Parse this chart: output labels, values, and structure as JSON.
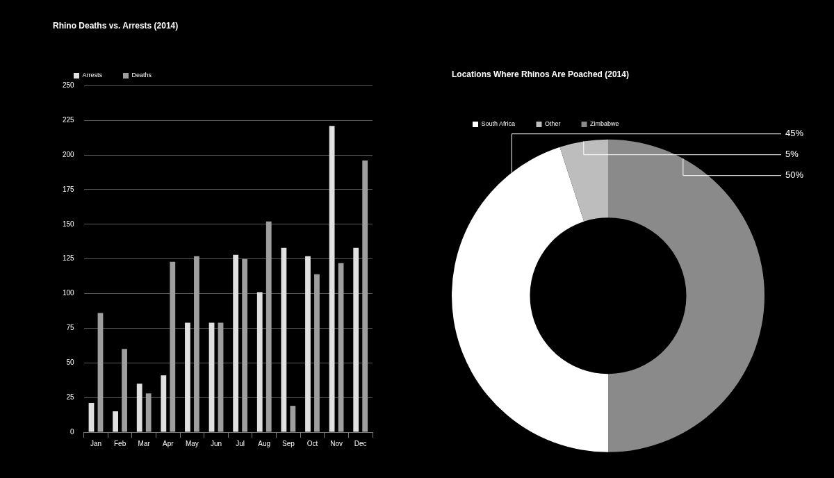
{
  "chart_data": [
    {
      "type": "bar",
      "title": "Rhino Deaths vs. Arrests (2014)",
      "categories": [
        "Jan",
        "Feb",
        "Mar",
        "Apr",
        "May",
        "Jun",
        "Jul",
        "Aug",
        "Sep",
        "Oct",
        "Nov",
        "Dec"
      ],
      "series": [
        {
          "name": "Arrests",
          "color": "#e0e0e0",
          "values": [
            21,
            15,
            35,
            41,
            79,
            79,
            128,
            101,
            133,
            127,
            221,
            133
          ]
        },
        {
          "name": "Deaths",
          "color": "#9e9e9e",
          "values": [
            86,
            60,
            28,
            123,
            127,
            79,
            125,
            152,
            19,
            114,
            122,
            196
          ]
        }
      ],
      "ylim": [
        0,
        250
      ],
      "yticks": [
        0,
        25,
        50,
        75,
        100,
        125,
        150,
        175,
        200,
        225,
        250
      ],
      "grid": "y",
      "legend": "top left"
    },
    {
      "type": "donut",
      "title": "Locations Where Rhinos Are Poached (2014)",
      "categories": [
        "South Africa",
        "Other",
        "Zimbabwe"
      ],
      "values": [
        45,
        5,
        50
      ],
      "colors": [
        "#ffffff",
        "#bdbdbd",
        "#8a8a8a"
      ],
      "value_labels": [
        "45%",
        "5%",
        "50%"
      ],
      "legend": "top left"
    }
  ]
}
